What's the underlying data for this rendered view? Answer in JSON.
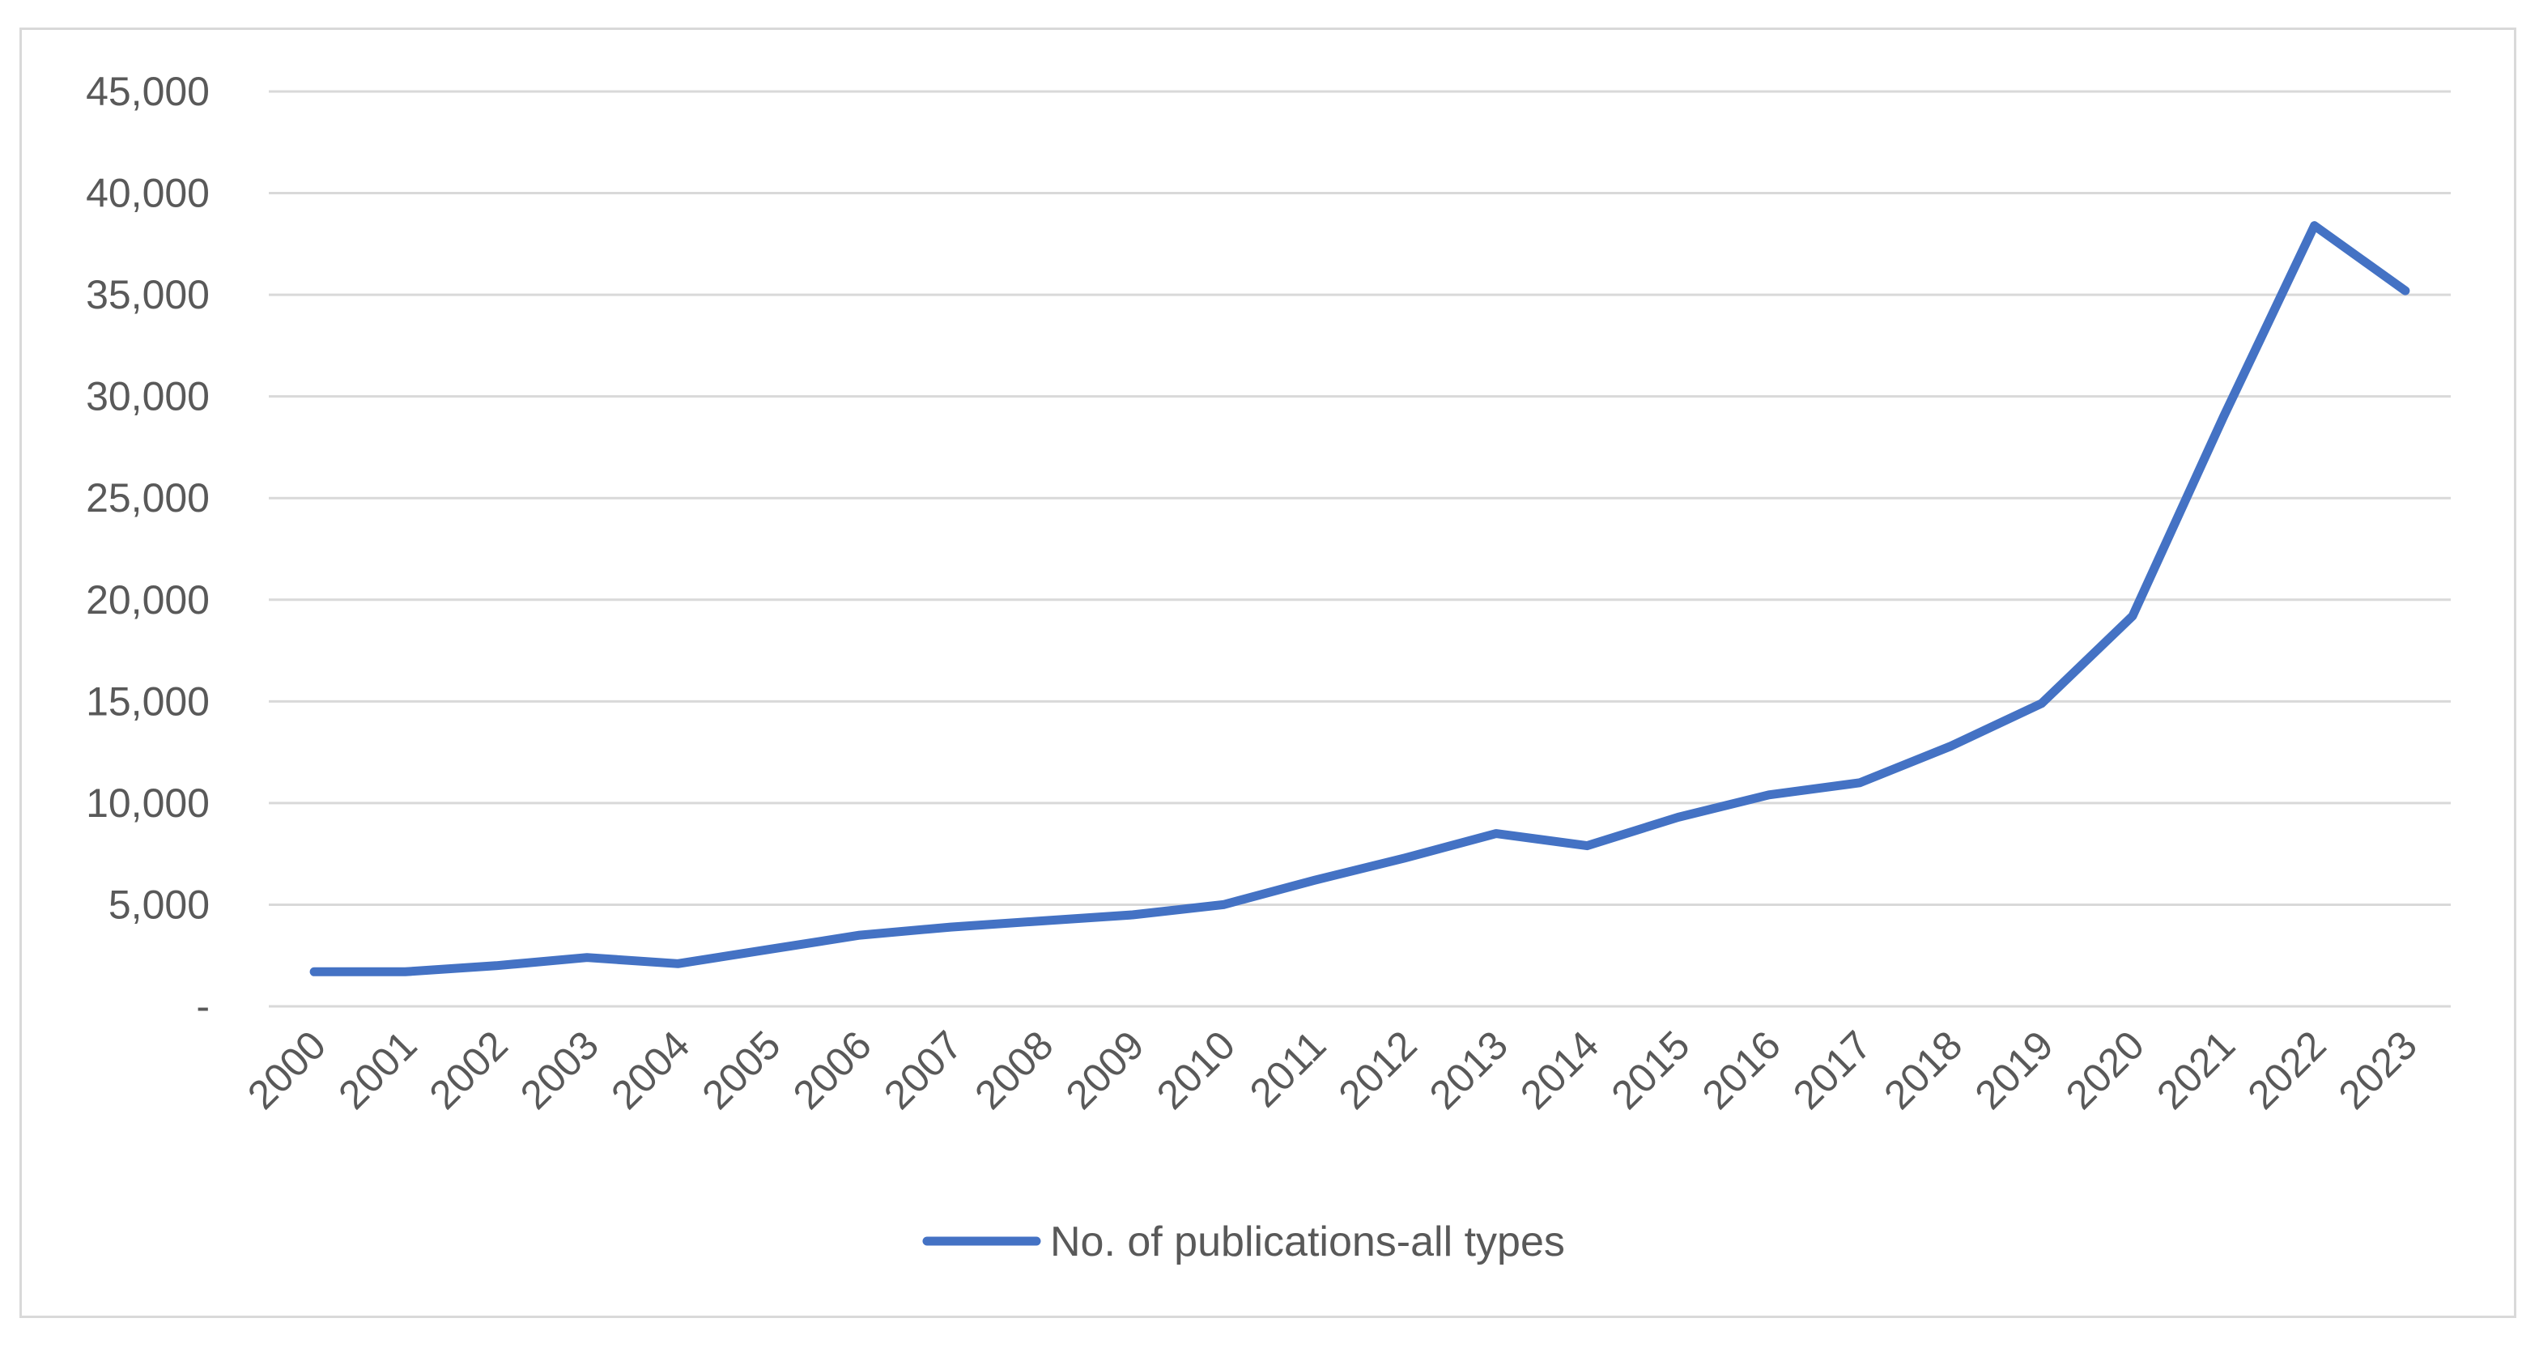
{
  "chart_data": {
    "type": "line",
    "title": "",
    "xlabel": "",
    "ylabel": "",
    "x": [
      "2000",
      "2001",
      "2002",
      "2003",
      "2004",
      "2005",
      "2006",
      "2007",
      "2008",
      "2009",
      "2010",
      "2011",
      "2012",
      "2013",
      "2014",
      "2015",
      "2016",
      "2017",
      "2018",
      "2019",
      "2020",
      "2021",
      "2022",
      "2023"
    ],
    "series": [
      {
        "name": "No. of publications-all types",
        "color": "#4472c4",
        "values": [
          1700,
          1700,
          2000,
          2400,
          2100,
          2800,
          3500,
          3900,
          4200,
          4500,
          5000,
          6200,
          7300,
          8500,
          7900,
          9300,
          10400,
          11000,
          12800,
          14900,
          19200,
          29000,
          38400,
          35200
        ]
      }
    ],
    "ylim": [
      0,
      45000
    ],
    "y_ticks": [
      {
        "value": 0,
        "label": "-"
      },
      {
        "value": 5000,
        "label": "5,000"
      },
      {
        "value": 10000,
        "label": "10,000"
      },
      {
        "value": 15000,
        "label": "15,000"
      },
      {
        "value": 20000,
        "label": "20,000"
      },
      {
        "value": 25000,
        "label": "25,000"
      },
      {
        "value": 30000,
        "label": "30,000"
      },
      {
        "value": 35000,
        "label": "35,000"
      },
      {
        "value": 40000,
        "label": "40,000"
      },
      {
        "value": 45000,
        "label": "45,000"
      }
    ],
    "grid": true,
    "gridline_color": "#d9d9d9",
    "x_tick_rotation": "-45",
    "legend": "bottom-center"
  }
}
